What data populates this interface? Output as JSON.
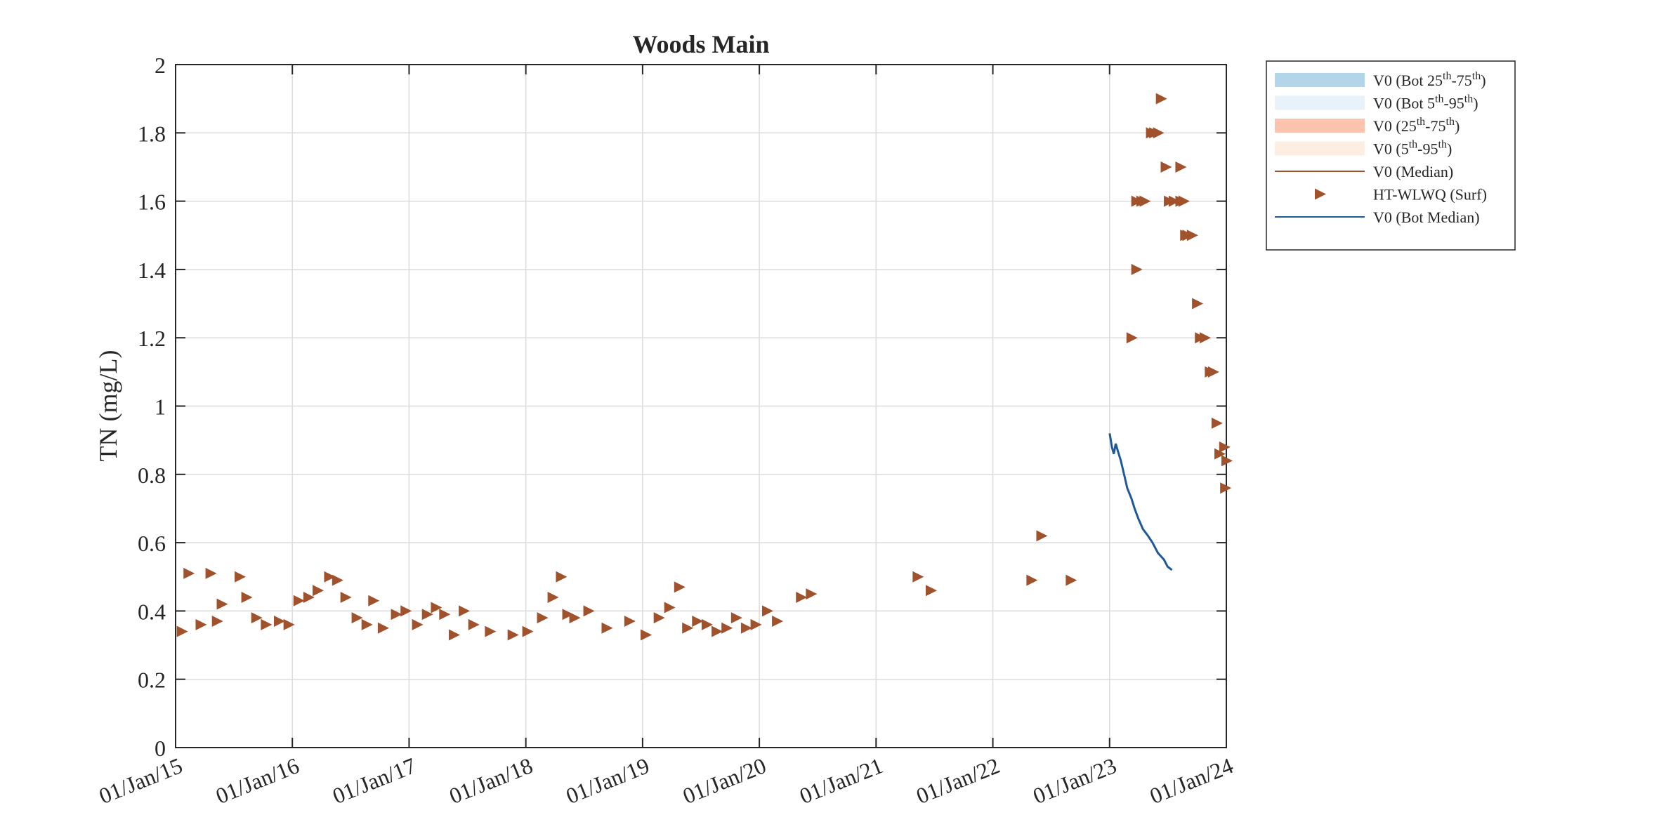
{
  "chart_data": {
    "type": "scatter",
    "title": "Woods Main",
    "xlabel": "",
    "ylabel": "TN (mg/L)",
    "ylim": [
      0,
      2
    ],
    "xlim": [
      "2015-01-01",
      "2024-01-01"
    ],
    "x_tick_labels": [
      "01/Jan/15",
      "01/Jan/16",
      "01/Jan/17",
      "01/Jan/18",
      "01/Jan/19",
      "01/Jan/20",
      "01/Jan/21",
      "01/Jan/22",
      "01/Jan/23",
      "01/Jan/24"
    ],
    "y_tick_labels": [
      "0",
      "0.2",
      "0.4",
      "0.6",
      "0.8",
      "1",
      "1.2",
      "1.4",
      "1.6",
      "1.8",
      "2"
    ],
    "grid": true,
    "legend_position": "outside-top-right",
    "legend": [
      {
        "key": "bot_iqr",
        "text": "V0 (Bot 25",
        "sup1": "th",
        "mid": "-75",
        "sup2": "th",
        "tail": ")",
        "swatch": "band",
        "color": "#b3d5ea"
      },
      {
        "key": "bot_90",
        "text": "V0 (Bot 5",
        "sup1": "th",
        "mid": "-95",
        "sup2": "th",
        "tail": ")",
        "swatch": "band",
        "color": "#e8f2fa"
      },
      {
        "key": "iqr",
        "text": "V0 (25",
        "sup1": "th",
        "mid": "-75",
        "sup2": "th",
        "tail": ")",
        "swatch": "band",
        "color": "#fcc4ac"
      },
      {
        "key": "p90",
        "text": "V0 (5",
        "sup1": "th",
        "mid": "-95",
        "sup2": "th",
        "tail": ")",
        "swatch": "band",
        "color": "#fdeee2"
      },
      {
        "key": "median",
        "text": "V0 (Median)",
        "swatch": "line",
        "color": "#a0522d"
      },
      {
        "key": "obs",
        "text": "HT-WLWQ (Surf)",
        "swatch": "marker",
        "color": "#a0522d"
      },
      {
        "key": "bot_median",
        "text": "V0 (Bot Median)",
        "swatch": "line",
        "color": "#1f5a96"
      }
    ],
    "series": [
      {
        "name": "HT-WLWQ (Surf)",
        "kind": "scatter",
        "marker": "triangle-right",
        "color": "#a0522d",
        "points": [
          [
            "2015-01-20",
            0.34
          ],
          [
            "2015-02-10",
            0.51
          ],
          [
            "2015-03-20",
            0.36
          ],
          [
            "2015-04-20",
            0.51
          ],
          [
            "2015-05-10",
            0.37
          ],
          [
            "2015-05-25",
            0.42
          ],
          [
            "2015-07-20",
            0.5
          ],
          [
            "2015-08-10",
            0.44
          ],
          [
            "2015-09-10",
            0.38
          ],
          [
            "2015-10-10",
            0.36
          ],
          [
            "2015-11-20",
            0.37
          ],
          [
            "2015-12-20",
            0.36
          ],
          [
            "2016-01-20",
            0.43
          ],
          [
            "2016-02-20",
            0.44
          ],
          [
            "2016-03-20",
            0.46
          ],
          [
            "2016-04-25",
            0.5
          ],
          [
            "2016-05-20",
            0.49
          ],
          [
            "2016-06-15",
            0.44
          ],
          [
            "2016-07-20",
            0.38
          ],
          [
            "2016-08-20",
            0.36
          ],
          [
            "2016-09-10",
            0.43
          ],
          [
            "2016-10-10",
            0.35
          ],
          [
            "2016-11-20",
            0.39
          ],
          [
            "2016-12-20",
            0.4
          ],
          [
            "2017-01-25",
            0.36
          ],
          [
            "2017-02-25",
            0.39
          ],
          [
            "2017-03-25",
            0.41
          ],
          [
            "2017-04-20",
            0.39
          ],
          [
            "2017-05-20",
            0.33
          ],
          [
            "2017-06-20",
            0.4
          ],
          [
            "2017-07-20",
            0.36
          ],
          [
            "2017-09-10",
            0.34
          ],
          [
            "2017-11-20",
            0.33
          ],
          [
            "2018-01-05",
            0.34
          ],
          [
            "2018-02-20",
            0.38
          ],
          [
            "2018-03-25",
            0.44
          ],
          [
            "2018-04-20",
            0.5
          ],
          [
            "2018-05-10",
            0.39
          ],
          [
            "2018-06-01",
            0.38
          ],
          [
            "2018-07-15",
            0.4
          ],
          [
            "2018-09-10",
            0.35
          ],
          [
            "2018-11-20",
            0.37
          ],
          [
            "2019-01-10",
            0.33
          ],
          [
            "2019-02-20",
            0.38
          ],
          [
            "2019-03-25",
            0.41
          ],
          [
            "2019-04-25",
            0.47
          ],
          [
            "2019-05-20",
            0.35
          ],
          [
            "2019-06-20",
            0.37
          ],
          [
            "2019-07-20",
            0.36
          ],
          [
            "2019-08-20",
            0.34
          ],
          [
            "2019-09-20",
            0.35
          ],
          [
            "2019-10-20",
            0.38
          ],
          [
            "2019-11-20",
            0.35
          ],
          [
            "2019-12-20",
            0.36
          ],
          [
            "2020-01-25",
            0.4
          ],
          [
            "2020-02-25",
            0.37
          ],
          [
            "2020-05-10",
            0.44
          ],
          [
            "2020-06-10",
            0.45
          ],
          [
            "2021-05-10",
            0.5
          ],
          [
            "2021-06-20",
            0.46
          ],
          [
            "2022-05-01",
            0.49
          ],
          [
            "2022-06-01",
            0.62
          ],
          [
            "2022-09-01",
            0.49
          ],
          [
            "2023-03-10",
            1.2
          ],
          [
            "2023-03-25",
            1.4
          ],
          [
            "2023-03-25",
            1.6
          ],
          [
            "2023-04-10",
            1.6
          ],
          [
            "2023-04-20",
            1.6
          ],
          [
            "2023-05-10",
            1.8
          ],
          [
            "2023-05-20",
            1.8
          ],
          [
            "2023-06-01",
            1.8
          ],
          [
            "2023-06-10",
            1.9
          ],
          [
            "2023-06-25",
            1.7
          ],
          [
            "2023-07-05",
            1.6
          ],
          [
            "2023-07-20",
            1.6
          ],
          [
            "2023-08-10",
            1.7
          ],
          [
            "2023-08-10",
            1.6
          ],
          [
            "2023-08-20",
            1.6
          ],
          [
            "2023-08-25",
            1.5
          ],
          [
            "2023-09-01",
            1.5
          ],
          [
            "2023-09-15",
            1.5
          ],
          [
            "2023-10-01",
            1.3
          ],
          [
            "2023-10-10",
            1.2
          ],
          [
            "2023-10-25",
            1.2
          ],
          [
            "2023-11-10",
            1.1
          ],
          [
            "2023-11-20",
            1.1
          ],
          [
            "2023-12-01",
            0.95
          ],
          [
            "2023-12-10",
            0.86
          ],
          [
            "2023-12-25",
            0.88
          ],
          [
            "2024-01-01",
            0.84
          ],
          [
            "2023-12-28",
            0.76
          ]
        ]
      },
      {
        "name": "V0 (Bot Median)",
        "kind": "line",
        "color": "#1f5a96",
        "points": [
          [
            "2023-01-01",
            0.92
          ],
          [
            "2023-01-08",
            0.88
          ],
          [
            "2023-01-14",
            0.86
          ],
          [
            "2023-01-20",
            0.89
          ],
          [
            "2023-01-26",
            0.87
          ],
          [
            "2023-02-05",
            0.84
          ],
          [
            "2023-02-15",
            0.8
          ],
          [
            "2023-02-25",
            0.76
          ],
          [
            "2023-03-10",
            0.73
          ],
          [
            "2023-03-20",
            0.7
          ],
          [
            "2023-04-01",
            0.67
          ],
          [
            "2023-04-15",
            0.64
          ],
          [
            "2023-05-01",
            0.62
          ],
          [
            "2023-05-15",
            0.6
          ],
          [
            "2023-06-01",
            0.57
          ],
          [
            "2023-06-20",
            0.55
          ],
          [
            "2023-07-01",
            0.53
          ],
          [
            "2023-07-15",
            0.52
          ]
        ]
      }
    ]
  }
}
